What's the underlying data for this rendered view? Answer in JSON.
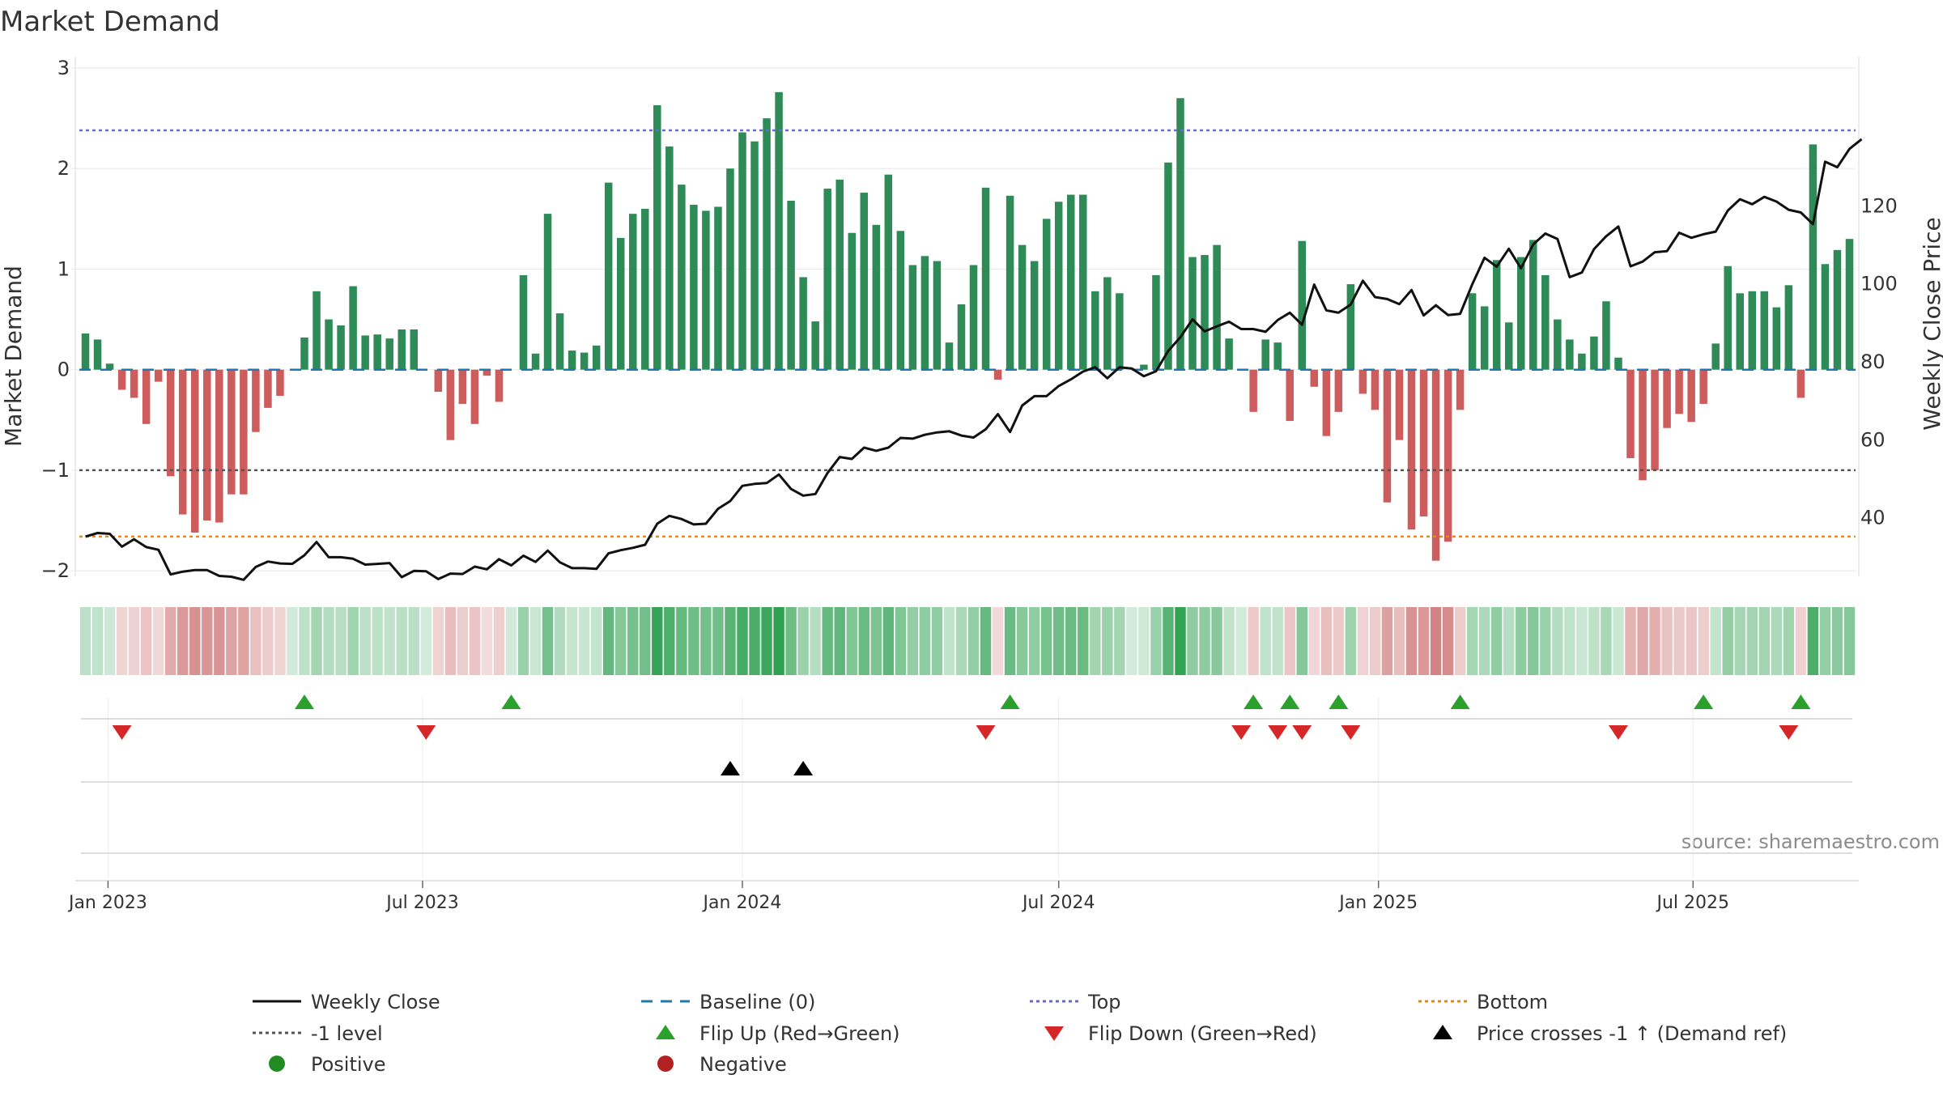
{
  "chart_data": {
    "type": "bar",
    "title": "Market Demand",
    "ylabel_left": "Market Demand",
    "ylabel_right": "Weekly Close Price",
    "source": "source: sharemaestro.com",
    "start_date": "2022-12-19",
    "ylim_left": [
      -2.2,
      3.0
    ],
    "yticks_left": [
      3,
      2,
      1,
      0,
      -1,
      -2
    ],
    "ytick_labels_left": [
      "3",
      "2",
      "1",
      "0",
      "−1",
      "−2"
    ],
    "ylim_right": [
      25,
      135
    ],
    "yticks_right": [
      40,
      60,
      80,
      100,
      120
    ],
    "ytick_labels_right": [
      "40",
      "60",
      "80",
      "100",
      "120"
    ],
    "x_tick_labels": [
      "Jan 2023",
      "Jul 2023",
      "Jan 2024",
      "Jul 2024",
      "Jan 2025",
      "Jul 2025"
    ],
    "x_tick_dates": [
      "2023-01-01",
      "2023-07-01",
      "2024-01-01",
      "2024-07-01",
      "2025-01-01",
      "2025-07-01"
    ],
    "levels": {
      "top": 2.38,
      "bottom": -1.66,
      "minus_one": -1.0,
      "baseline": 0
    },
    "colors": {
      "positive": "#2e8b57",
      "negative": "#cd5c5c",
      "price": "#111111",
      "top": "#6a6ad0",
      "bottom": "#e08a1e",
      "minus_one": "#555555",
      "baseline": "#1f77b4",
      "flip_up": "#2ca02c",
      "flip_down": "#d62728",
      "cross": "#000000"
    },
    "demand": [
      0.36,
      0.3,
      0.06,
      -0.2,
      -0.28,
      -0.54,
      -0.12,
      -1.06,
      -1.44,
      -1.62,
      -1.5,
      -1.52,
      -1.24,
      -1.24,
      -0.62,
      -0.38,
      -0.26,
      0.0,
      0.32,
      0.78,
      0.5,
      0.44,
      0.83,
      0.34,
      0.35,
      0.31,
      0.4,
      0.4,
      0.0,
      -0.22,
      -0.7,
      -0.34,
      -0.54,
      -0.06,
      -0.32,
      0.0,
      0.94,
      0.16,
      1.55,
      0.56,
      0.19,
      0.17,
      0.24,
      1.86,
      1.31,
      1.55,
      1.6,
      2.63,
      2.22,
      1.84,
      1.64,
      1.58,
      1.62,
      2.0,
      2.36,
      2.27,
      2.5,
      2.76,
      1.68,
      0.92,
      0.48,
      1.8,
      1.89,
      1.36,
      1.76,
      1.44,
      1.94,
      1.38,
      1.04,
      1.13,
      1.08,
      0.27,
      0.65,
      1.04,
      1.81,
      -0.1,
      1.73,
      1.24,
      1.08,
      1.5,
      1.67,
      1.74,
      1.74,
      0.78,
      0.92,
      0.76,
      0.0,
      0.05,
      0.94,
      2.06,
      2.7,
      1.12,
      1.14,
      1.24,
      0.31,
      0.0,
      -0.42,
      0.3,
      0.27,
      -0.51,
      1.28,
      -0.17,
      -0.66,
      -0.42,
      0.85,
      -0.24,
      -0.4,
      -1.32,
      -0.7,
      -1.59,
      -1.46,
      -1.9,
      -1.71,
      -0.4,
      0.76,
      0.63,
      1.09,
      0.47,
      1.12,
      1.29,
      0.94,
      0.5,
      0.3,
      0.16,
      0.33,
      0.68,
      0.12,
      -0.88,
      -1.1,
      -1.0,
      -0.58,
      -0.44,
      -0.52,
      -0.34,
      0.26,
      1.03,
      0.76,
      0.78,
      0.78,
      0.62,
      0.84,
      -0.28,
      2.24,
      1.05,
      1.19,
      1.3
    ],
    "price": [
      35.2,
      36.1,
      35.9,
      32.6,
      34.5,
      32.5,
      31.8,
      25.5,
      26.2,
      26.6,
      26.6,
      25.1,
      24.9,
      24.1,
      27.4,
      28.8,
      28.3,
      28.2,
      30.4,
      33.8,
      29.9,
      29.9,
      29.5,
      28.0,
      28.2,
      28.4,
      24.8,
      26.4,
      26.3,
      24.3,
      25.7,
      25.6,
      27.5,
      26.8,
      29.4,
      27.8,
      30.3,
      28.7,
      31.6,
      28.6,
      27.1,
      27.1,
      26.9,
      30.9,
      31.7,
      32.3,
      33.1,
      38.5,
      40.5,
      39.7,
      38.3,
      38.5,
      42.3,
      44.3,
      48.2,
      48.7,
      48.9,
      51.1,
      47.4,
      45.7,
      46.1,
      51.5,
      55.6,
      55.1,
      58.0,
      57.2,
      58.0,
      60.5,
      60.3,
      61.3,
      61.9,
      62.2,
      61.1,
      60.6,
      62.7,
      66.6,
      62.0,
      68.8,
      71.2,
      71.2,
      73.8,
      75.5,
      77.5,
      78.6,
      75.8,
      78.6,
      78.3,
      76.3,
      77.6,
      82.8,
      86.3,
      90.9,
      87.8,
      89.1,
      90.3,
      88.4,
      88.4,
      87.7,
      90.7,
      92.6,
      89.5,
      99.8,
      93.2,
      92.6,
      94.7,
      100.8,
      96.6,
      96.1,
      94.8,
      98.4,
      91.9,
      94.5,
      92.0,
      92.3,
      99.9,
      106.7,
      104.4,
      109.0,
      104.0,
      110.1,
      112.9,
      111.5,
      101.7,
      102.9,
      108.9,
      112.2,
      114.7,
      104.5,
      105.7,
      108.1,
      108.4,
      113.1,
      111.8,
      112.7,
      113.4,
      118.8,
      121.7,
      120.4,
      122.3,
      121.1,
      119.0,
      118.3,
      115.3,
      131.3,
      129.9,
      134.6,
      137.1
    ],
    "flip_up_weeks": [
      18,
      35,
      76,
      96,
      99,
      103,
      113,
      133,
      141
    ],
    "flip_down_weeks": [
      3,
      28,
      74,
      95,
      98,
      100,
      104,
      126,
      140
    ],
    "cross_weeks": [
      53,
      59
    ],
    "legend": [
      {
        "label": "Weekly Close",
        "icon": "solid-line-icon",
        "color": "#111111"
      },
      {
        "label": "Baseline (0)",
        "icon": "dashed-line-icon",
        "color": "#1f77b4"
      },
      {
        "label": "Top",
        "icon": "dotted-line-icon",
        "color": "#6a6ad0"
      },
      {
        "label": "Bottom",
        "icon": "dotted-line-icon",
        "color": "#e08a1e"
      },
      {
        "label": "-1 level",
        "icon": "dotted-line-icon",
        "color": "#555555"
      },
      {
        "label": "Flip Up (Red→Green)",
        "icon": "triangle-up-icon",
        "color": "#2ca02c"
      },
      {
        "label": "Flip Down (Green→Red)",
        "icon": "triangle-down-icon",
        "color": "#d62728"
      },
      {
        "label": "Price crosses -1 ↑ (Demand ref)",
        "icon": "triangle-up-icon",
        "color": "#000000"
      },
      {
        "label": "Positive",
        "icon": "circle-icon",
        "color": "#228b22"
      },
      {
        "label": "Negative",
        "icon": "circle-icon",
        "color": "#b22222"
      }
    ]
  }
}
